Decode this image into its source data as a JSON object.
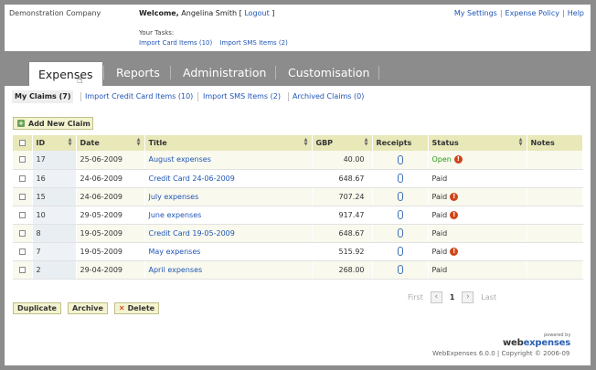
{
  "header": {
    "company": "Demonstration Company",
    "welcome_prefix": "Welcome,",
    "user_name": "Angelina Smith",
    "logout": "Logout",
    "top_links": [
      "My Settings",
      "Expense Policy",
      "Help"
    ],
    "tasks_title": "Your Tasks:",
    "tasks": [
      "Import Card Items (10)",
      "Import SMS Items (2)"
    ]
  },
  "tabs": [
    "Expenses",
    "Reports",
    "Administration",
    "Customisation"
  ],
  "subtabs": [
    "My Claims (7)",
    "Import Credit Card Items (10)",
    "Import SMS Items (2)",
    "Archived Claims (0)"
  ],
  "add_button": "Add New Claim",
  "table": {
    "columns": [
      "ID",
      "Date",
      "Title",
      "GBP",
      "Receipts",
      "Status",
      "Notes"
    ],
    "rows": [
      {
        "id": "17",
        "date": "25-06-2009",
        "title": "August expenses",
        "gbp": "40.00",
        "status": "Open",
        "warn": true
      },
      {
        "id": "16",
        "date": "24-06-2009",
        "title": "Credit Card 24-06-2009",
        "gbp": "648.67",
        "status": "Paid",
        "warn": false
      },
      {
        "id": "15",
        "date": "24-06-2009",
        "title": "July expenses",
        "gbp": "707.24",
        "status": "Paid",
        "warn": true
      },
      {
        "id": "10",
        "date": "29-05-2009",
        "title": "June expenses",
        "gbp": "917.47",
        "status": "Paid",
        "warn": true
      },
      {
        "id": "8",
        "date": "19-05-2009",
        "title": "Credit Card 19-05-2009",
        "gbp": "648.67",
        "status": "Paid",
        "warn": false
      },
      {
        "id": "7",
        "date": "19-05-2009",
        "title": "May expenses",
        "gbp": "515.92",
        "status": "Paid",
        "warn": true
      },
      {
        "id": "2",
        "date": "29-04-2009",
        "title": "April expenses",
        "gbp": "268.00",
        "status": "Paid",
        "warn": false
      }
    ]
  },
  "pager": {
    "first": "First",
    "current": "1",
    "last": "Last"
  },
  "actions": {
    "duplicate": "Duplicate",
    "archive": "Archive",
    "delete": "Delete"
  },
  "footer": {
    "powered_by": "powered by",
    "logo_web": "web",
    "logo_expenses": "expenses",
    "copyright": "WebExpenses 6.0.0 | Copyright © 2006-09"
  }
}
